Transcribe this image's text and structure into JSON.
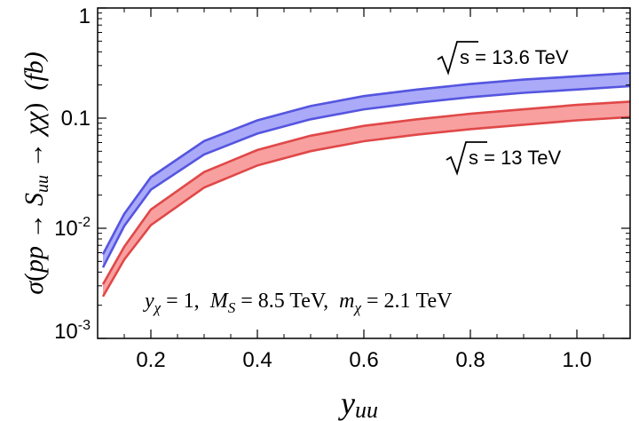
{
  "chart_data": {
    "type": "area",
    "title": "",
    "xlabel_main": "y",
    "xlabel_sub": "uu",
    "ylabel_parts": {
      "sigma": "σ",
      "open": "(",
      "pp": "pp",
      "arrow1": " → ",
      "S": "S",
      "S_sub": "uu",
      "arrow2": " → ",
      "chichi": "χχ",
      "close": ")",
      "unit": "(fb)"
    },
    "xlim": [
      0.1,
      1.1
    ],
    "ylim_log10": [
      -3,
      0
    ],
    "x_ticks": [
      0.2,
      0.4,
      0.6,
      0.8,
      1.0
    ],
    "x_tick_labels": [
      "0.2",
      "0.4",
      "0.6",
      "0.8",
      "1.0"
    ],
    "y_ticks": [
      {
        "value": 1,
        "base": "1",
        "exp": ""
      },
      {
        "value": 0.1,
        "base": "0.1",
        "exp": ""
      },
      {
        "value": 0.01,
        "base": "10",
        "exp": "-2"
      },
      {
        "value": 0.001,
        "base": "10",
        "exp": "-3"
      }
    ],
    "series": [
      {
        "name": "√s = 13.6 TeV",
        "label_sqrt": "s",
        "label_rest": " = 13.6 TeV",
        "fill": "#aaaaf8",
        "stroke": "#5555e0",
        "x": [
          0.11,
          0.15,
          0.2,
          0.3,
          0.4,
          0.5,
          0.6,
          0.7,
          0.8,
          0.9,
          1.0,
          1.1
        ],
        "upper": [
          0.0058,
          0.0135,
          0.0291,
          0.0619,
          0.0955,
          0.1288,
          0.1585,
          0.182,
          0.2042,
          0.2239,
          0.2399,
          0.257
        ],
        "lower": [
          0.0044,
          0.0105,
          0.0224,
          0.0468,
          0.0724,
          0.0977,
          0.1202,
          0.138,
          0.1549,
          0.1698,
          0.182,
          0.195
        ]
      },
      {
        "name": "√s = 13 TeV",
        "label_sqrt": "s",
        "label_rest": " = 13 TeV",
        "fill": "#f8a0a0",
        "stroke": "#e04848",
        "x": [
          0.11,
          0.15,
          0.2,
          0.3,
          0.4,
          0.5,
          0.6,
          0.7,
          0.8,
          0.9,
          1.0,
          1.1
        ],
        "upper": [
          0.0031,
          0.0068,
          0.0148,
          0.0324,
          0.0513,
          0.0692,
          0.0851,
          0.0977,
          0.1096,
          0.1202,
          0.1318,
          0.1413
        ],
        "lower": [
          0.0024,
          0.0052,
          0.0107,
          0.0234,
          0.0372,
          0.0501,
          0.0617,
          0.0708,
          0.0794,
          0.0871,
          0.0955,
          0.1023
        ]
      }
    ],
    "annotation": {
      "y": "y",
      "y_sub": "χ",
      "part1": " = 1,  ",
      "M": "M",
      "M_sub": "S",
      "part2": " = 8.5 TeV,  ",
      "m": "m",
      "m_sub": "χ",
      "part3": " = 2.1 TeV"
    }
  }
}
